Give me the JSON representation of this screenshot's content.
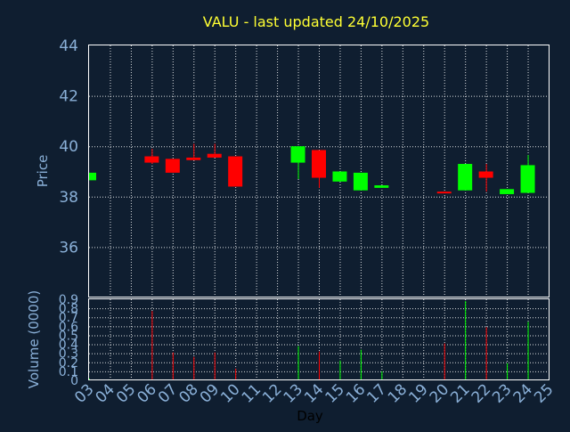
{
  "chart_data": {
    "type": "candlestick",
    "title": "VALU - last updated 24/10/2025",
    "xlabel": "Day",
    "price_ylabel": "Price",
    "volume_ylabel": "Volume (0000)",
    "x_ticks": [
      "03",
      "04",
      "05",
      "06",
      "07",
      "08",
      "09",
      "10",
      "11",
      "12",
      "13",
      "14",
      "15",
      "16",
      "17",
      "18",
      "19",
      "20",
      "21",
      "22",
      "23",
      "24",
      "25"
    ],
    "price_ylim": [
      34,
      44
    ],
    "price_ticks": [
      "36",
      "38",
      "40",
      "42",
      "44"
    ],
    "volume_ylim": [
      0,
      0.9
    ],
    "volume_ticks": [
      "0",
      "0.1",
      "0.2",
      "0.3",
      "0.4",
      "0.5",
      "0.6",
      "0.7",
      "0.8",
      "0.9"
    ],
    "grid": true,
    "up_color": "#00ff00",
    "down_color": "#ff0000",
    "candles": [
      {
        "day": 3,
        "open": 38.65,
        "high": 38.95,
        "low": 38.65,
        "close": 38.95,
        "volume": 0.02
      },
      {
        "day": 6,
        "open": 39.6,
        "high": 39.9,
        "low": 39.3,
        "close": 39.35,
        "volume": 0.77
      },
      {
        "day": 7,
        "open": 39.5,
        "high": 39.5,
        "low": 38.95,
        "close": 38.95,
        "volume": 0.31
      },
      {
        "day": 8,
        "open": 39.55,
        "high": 40.1,
        "low": 39.45,
        "close": 39.45,
        "volume": 0.26
      },
      {
        "day": 9,
        "open": 39.7,
        "high": 40.1,
        "low": 39.55,
        "close": 39.55,
        "volume": 0.31
      },
      {
        "day": 10,
        "open": 39.6,
        "high": 39.6,
        "low": 38.4,
        "close": 38.4,
        "volume": 0.13
      },
      {
        "day": 13,
        "open": 39.35,
        "high": 40.0,
        "low": 38.7,
        "close": 40.0,
        "volume": 0.38
      },
      {
        "day": 14,
        "open": 39.85,
        "high": 39.85,
        "low": 38.35,
        "close": 38.75,
        "volume": 0.32
      },
      {
        "day": 15,
        "open": 38.6,
        "high": 39.0,
        "low": 38.6,
        "close": 39.0,
        "volume": 0.22
      },
      {
        "day": 16,
        "open": 38.25,
        "high": 38.95,
        "low": 38.25,
        "close": 38.95,
        "volume": 0.34
      },
      {
        "day": 17,
        "open": 38.35,
        "high": 38.45,
        "low": 38.35,
        "close": 38.45,
        "volume": 0.1
      },
      {
        "day": 20,
        "open": 38.2,
        "high": 38.2,
        "low": 38.15,
        "close": 38.15,
        "volume": 0.41
      },
      {
        "day": 21,
        "open": 38.25,
        "high": 39.3,
        "low": 38.25,
        "close": 39.3,
        "volume": 0.88
      },
      {
        "day": 22,
        "open": 39.0,
        "high": 39.3,
        "low": 38.2,
        "close": 38.75,
        "volume": 0.59
      },
      {
        "day": 23,
        "open": 38.1,
        "high": 38.3,
        "low": 38.1,
        "close": 38.3,
        "volume": 0.19
      },
      {
        "day": 24,
        "open": 38.15,
        "high": 39.65,
        "low": 38.15,
        "close": 39.25,
        "volume": 0.65
      }
    ]
  }
}
